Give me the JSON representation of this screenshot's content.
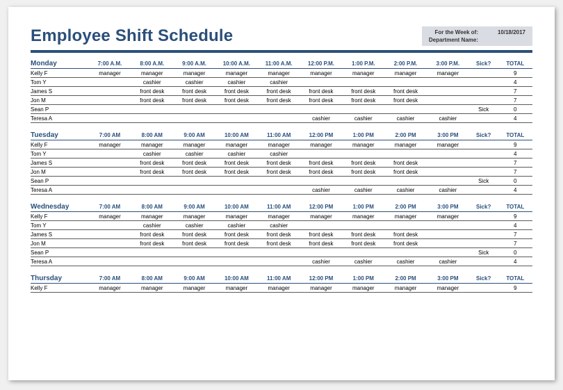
{
  "title": "Employee Shift Schedule",
  "meta": {
    "week_label": "For the Week of:",
    "week_value": "10/18/2017",
    "dept_label": "Department Name:",
    "dept_value": ""
  },
  "columns": {
    "sick": "Sick?",
    "total": "TOTAL"
  },
  "days": [
    {
      "name": "Monday",
      "hours": [
        "7:00 A.M.",
        "8:00 A.M.",
        "9:00 A.M.",
        "10:00 A.M.",
        "11:00 A.M.",
        "12:00 P.M.",
        "1:00 P.M.",
        "2:00 P.M.",
        "3:00 P.M."
      ],
      "rows": [
        {
          "emp": "Kelly F",
          "cells": [
            "manager",
            "manager",
            "manager",
            "manager",
            "manager",
            "manager",
            "manager",
            "manager",
            "manager"
          ],
          "sick": "",
          "total": "9"
        },
        {
          "emp": "Tom Y",
          "cells": [
            "",
            "cashier",
            "cashier",
            "cashier",
            "cashier",
            "",
            "",
            "",
            ""
          ],
          "sick": "",
          "total": "4"
        },
        {
          "emp": "James S",
          "cells": [
            "",
            "front desk",
            "front desk",
            "front desk",
            "front desk",
            "front desk",
            "front desk",
            "front desk",
            ""
          ],
          "sick": "",
          "total": "7"
        },
        {
          "emp": "Jon M",
          "cells": [
            "",
            "front desk",
            "front desk",
            "front desk",
            "front desk",
            "front desk",
            "front desk",
            "front desk",
            ""
          ],
          "sick": "",
          "total": "7"
        },
        {
          "emp": "Sean P",
          "cells": [
            "",
            "",
            "",
            "",
            "",
            "",
            "",
            "",
            ""
          ],
          "sick": "Sick",
          "total": "0"
        },
        {
          "emp": "Teresa A",
          "cells": [
            "",
            "",
            "",
            "",
            "",
            "cashier",
            "cashier",
            "cashier",
            "cashier"
          ],
          "sick": "",
          "total": "4"
        }
      ]
    },
    {
      "name": "Tuesday",
      "hours": [
        "7:00 AM",
        "8:00 AM",
        "9:00 AM",
        "10:00 AM",
        "11:00 AM",
        "12:00 PM",
        "1:00 PM",
        "2:00 PM",
        "3:00 PM"
      ],
      "rows": [
        {
          "emp": "Kelly F",
          "cells": [
            "manager",
            "manager",
            "manager",
            "manager",
            "manager",
            "manager",
            "manager",
            "manager",
            "manager"
          ],
          "sick": "",
          "total": "9"
        },
        {
          "emp": "Tom Y",
          "cells": [
            "",
            "cashier",
            "cashier",
            "cashier",
            "cashier",
            "",
            "",
            "",
            ""
          ],
          "sick": "",
          "total": "4"
        },
        {
          "emp": "James S",
          "cells": [
            "",
            "front desk",
            "front desk",
            "front desk",
            "front desk",
            "front desk",
            "front desk",
            "front desk",
            ""
          ],
          "sick": "",
          "total": "7"
        },
        {
          "emp": "Jon M",
          "cells": [
            "",
            "front desk",
            "front desk",
            "front desk",
            "front desk",
            "front desk",
            "front desk",
            "front desk",
            ""
          ],
          "sick": "",
          "total": "7"
        },
        {
          "emp": "Sean P",
          "cells": [
            "",
            "",
            "",
            "",
            "",
            "",
            "",
            "",
            ""
          ],
          "sick": "Sick",
          "total": "0"
        },
        {
          "emp": "Teresa A",
          "cells": [
            "",
            "",
            "",
            "",
            "",
            "cashier",
            "cashier",
            "cashier",
            "cashier"
          ],
          "sick": "",
          "total": "4"
        }
      ]
    },
    {
      "name": "Wednesday",
      "hours": [
        "7:00 AM",
        "8:00 AM",
        "9:00 AM",
        "10:00 AM",
        "11:00 AM",
        "12:00 PM",
        "1:00 PM",
        "2:00 PM",
        "3:00 PM"
      ],
      "rows": [
        {
          "emp": "Kelly F",
          "cells": [
            "manager",
            "manager",
            "manager",
            "manager",
            "manager",
            "manager",
            "manager",
            "manager",
            "manager"
          ],
          "sick": "",
          "total": "9"
        },
        {
          "emp": "Tom Y",
          "cells": [
            "",
            "cashier",
            "cashier",
            "cashier",
            "cashier",
            "",
            "",
            "",
            ""
          ],
          "sick": "",
          "total": "4"
        },
        {
          "emp": "James S",
          "cells": [
            "",
            "front desk",
            "front desk",
            "front desk",
            "front desk",
            "front desk",
            "front desk",
            "front desk",
            ""
          ],
          "sick": "",
          "total": "7"
        },
        {
          "emp": "Jon M",
          "cells": [
            "",
            "front desk",
            "front desk",
            "front desk",
            "front desk",
            "front desk",
            "front desk",
            "front desk",
            ""
          ],
          "sick": "",
          "total": "7"
        },
        {
          "emp": "Sean P",
          "cells": [
            "",
            "",
            "",
            "",
            "",
            "",
            "",
            "",
            ""
          ],
          "sick": "Sick",
          "total": "0"
        },
        {
          "emp": "Teresa A",
          "cells": [
            "",
            "",
            "",
            "",
            "",
            "cashier",
            "cashier",
            "cashier",
            "cashier"
          ],
          "sick": "",
          "total": "4"
        }
      ]
    },
    {
      "name": "Thursday",
      "hours": [
        "7:00 AM",
        "8:00 AM",
        "9:00 AM",
        "10:00 AM",
        "11:00 AM",
        "12:00 PM",
        "1:00 PM",
        "2:00 PM",
        "3:00 PM"
      ],
      "rows": [
        {
          "emp": "Kelly F",
          "cells": [
            "manager",
            "manager",
            "manager",
            "manager",
            "manager",
            "manager",
            "manager",
            "manager",
            "manager"
          ],
          "sick": "",
          "total": "9"
        }
      ]
    }
  ],
  "colors": {
    "accent": "#2b4f7a",
    "meta_bg": "#d9dce2",
    "rule": "#5a5a5a",
    "background": "#ffffff"
  }
}
